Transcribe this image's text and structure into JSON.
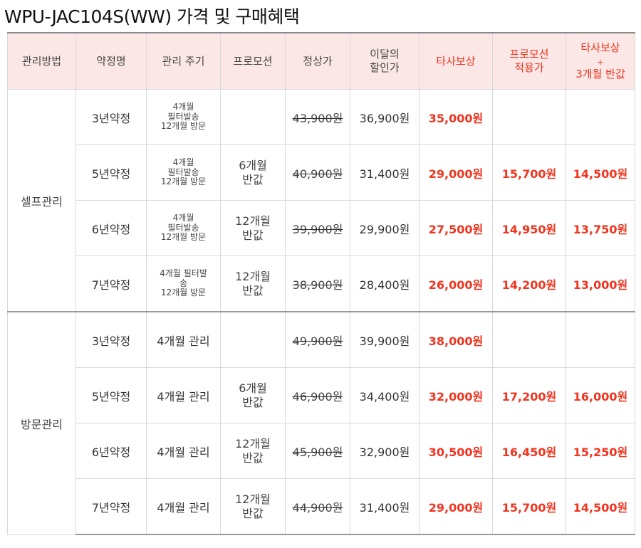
{
  "title": "WPU-JAC104S(WW) 가격 및 구매혜택",
  "headers": {
    "mgmt": "관리방법",
    "contract": "약정명",
    "cycle": "관리 주기",
    "promo": "프로모션",
    "normal": "정상가",
    "discount_l1": "이달의",
    "discount_l2": "할인가",
    "tradein": "타사보상",
    "promo_price_l1": "프로모션",
    "promo_price_l2": "적용가",
    "tradein_half_l1": "타사보상",
    "tradein_half_l2": "+",
    "tradein_half_l3": "3개월 반값"
  },
  "colors": {
    "accent_red": "#f0341f",
    "header_bg": "#fbe8e6"
  },
  "groups": [
    {
      "name": "셀프관리",
      "rows": [
        {
          "contract": "3년약정",
          "cycle": [
            "4개월",
            "필터발송",
            "12개월 방문"
          ],
          "promo": [],
          "normal": "43,900원",
          "discount": "36,900원",
          "tradein": "35,000원",
          "promo_price": "",
          "tradein_half": ""
        },
        {
          "contract": "5년약정",
          "cycle": [
            "4개월",
            "필터발송",
            "12개월 방문"
          ],
          "promo": [
            "6개월",
            "반값"
          ],
          "normal": "40,900원",
          "discount": "31,400원",
          "tradein": "29,000원",
          "promo_price": "15,700원",
          "tradein_half": "14,500원"
        },
        {
          "contract": "6년약정",
          "cycle": [
            "4개월",
            "필터발송",
            "12개월 방문"
          ],
          "promo": [
            "12개월",
            "반값"
          ],
          "normal": "39,900원",
          "discount": "29,900원",
          "tradein": "27,500원",
          "promo_price": "14,950원",
          "tradein_half": "13,750원"
        },
        {
          "contract": "7년약정",
          "cycle": [
            "4개월 필터발",
            "송",
            "12개월 방문"
          ],
          "promo": [
            "12개월",
            "반값"
          ],
          "normal": "38,900원",
          "discount": "28,400원",
          "tradein": "26,000원",
          "promo_price": "14,200원",
          "tradein_half": "13,000원"
        }
      ]
    },
    {
      "name": "방문관리",
      "rows": [
        {
          "contract": "3년약정",
          "cycle": [
            "4개월 관리"
          ],
          "promo": [],
          "normal": "49,900원",
          "discount": "39,900원",
          "tradein": "38,000원",
          "promo_price": "",
          "tradein_half": ""
        },
        {
          "contract": "5년약정",
          "cycle": [
            "4개월 관리"
          ],
          "promo": [
            "6개월",
            "반값"
          ],
          "normal": "46,900원",
          "discount": "34,400원",
          "tradein": "32,000원",
          "promo_price": "17,200원",
          "tradein_half": "16,000원"
        },
        {
          "contract": "6년약정",
          "cycle": [
            "4개월 관리"
          ],
          "promo": [
            "12개월",
            "반값"
          ],
          "normal": "45,900원",
          "discount": "32,900원",
          "tradein": "30,500원",
          "promo_price": "16,450원",
          "tradein_half": "15,250원"
        },
        {
          "contract": "7년약정",
          "cycle": [
            "4개월 관리"
          ],
          "promo": [
            "12개월",
            "반값"
          ],
          "normal": "44,900원",
          "discount": "31,400원",
          "tradein": "29,000원",
          "promo_price": "15,700원",
          "tradein_half": "14,500원"
        }
      ]
    }
  ]
}
